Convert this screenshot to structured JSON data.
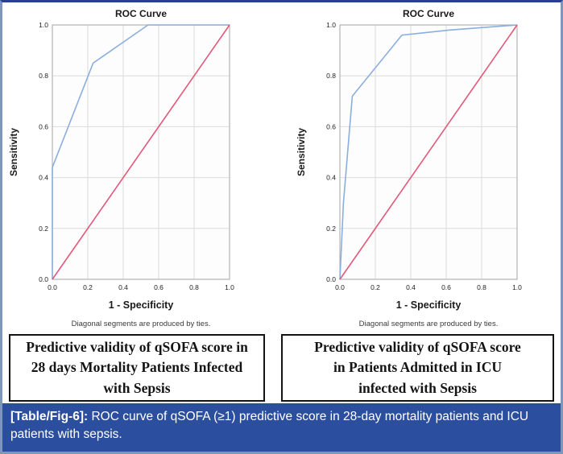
{
  "figure": {
    "caption_label": "[Table/Fig-6]:",
    "caption_text": " ROC curve of qSOFA (≥1) predictive score in 28-day mortality patients and ICU patients with sepsis.",
    "colors": {
      "caption_bar_bg": "#2b4f9e",
      "outer_border": "#7e96bb",
      "top_border": "#25418f",
      "roc_curve_blue": "#8caede",
      "reference_line_red": "#e25878",
      "gridline": "#dcdcdc",
      "plot_border": "#b3b3b3"
    }
  },
  "panels": [
    {
      "caption_lines": [
        "Predictive validity of qSOFA score in",
        "28 days Mortality Patients Infected",
        "with Sepsis"
      ]
    },
    {
      "caption_lines": [
        "Predictive validity of qSOFA score",
        "in Patients Admitted in ICU",
        "infected with Sepsis"
      ]
    }
  ],
  "chart_data": [
    {
      "type": "line",
      "title": "ROC Curve",
      "xlabel": "1 - Specificity",
      "ylabel": "Sensitivity",
      "footnote": "Diagonal segments are produced by ties.",
      "xlim": [
        0.0,
        1.0
      ],
      "ylim": [
        0.0,
        1.0
      ],
      "xticks": [
        "0.0",
        "0.2",
        "0.4",
        "0.6",
        "0.8",
        "1.0"
      ],
      "yticks": [
        "0.0",
        "0.2",
        "0.4",
        "0.6",
        "0.8",
        "1.0"
      ],
      "grid": true,
      "legend_position": "none",
      "series": [
        {
          "name": "qSOFA ROC curve (28-day mortality)",
          "color": "#8caede",
          "points": [
            [
              0.0,
              0.0
            ],
            [
              0.0,
              0.44
            ],
            [
              0.23,
              0.85
            ],
            [
              0.54,
              1.0
            ],
            [
              1.0,
              1.0
            ]
          ]
        },
        {
          "name": "Reference diagonal line",
          "color": "#e25878",
          "points": [
            [
              0.0,
              0.0
            ],
            [
              1.0,
              1.0
            ]
          ]
        }
      ]
    },
    {
      "type": "line",
      "title": "ROC Curve",
      "xlabel": "1 - Specificity",
      "ylabel": "Sensitivity",
      "footnote": "Diagonal segments are produced by ties.",
      "xlim": [
        0.0,
        1.0
      ],
      "ylim": [
        0.0,
        1.0
      ],
      "xticks": [
        "0.0",
        "0.2",
        "0.4",
        "0.6",
        "0.8",
        "1.0"
      ],
      "yticks": [
        "0.0",
        "0.2",
        "0.4",
        "0.6",
        "0.8",
        "1.0"
      ],
      "grid": true,
      "legend_position": "none",
      "series": [
        {
          "name": "qSOFA ROC curve (ICU admission)",
          "color": "#8caede",
          "points": [
            [
              0.0,
              0.0
            ],
            [
              0.02,
              0.3
            ],
            [
              0.07,
              0.72
            ],
            [
              0.35,
              0.96
            ],
            [
              0.62,
              0.98
            ],
            [
              1.0,
              1.0
            ]
          ]
        },
        {
          "name": "Reference diagonal line",
          "color": "#e25878",
          "points": [
            [
              0.0,
              0.0
            ],
            [
              1.0,
              1.0
            ]
          ]
        }
      ]
    }
  ]
}
